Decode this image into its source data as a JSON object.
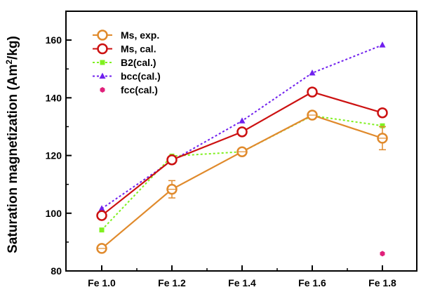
{
  "chart_data": {
    "type": "line",
    "categories": [
      "Fe 1.0",
      "Fe 1.2",
      "Fe 1.4",
      "Fe 1.6",
      "Fe 1.8"
    ],
    "ylabel": {
      "main": "Saturation magnetization (Am",
      "sup": "2",
      "tail": "/kg)"
    },
    "ylim": [
      80,
      170
    ],
    "yticks": [
      80,
      100,
      120,
      140,
      160
    ],
    "grid": false,
    "legend_position": "top-left",
    "series": [
      {
        "name": "Ms, exp.",
        "color": "#e08a2c",
        "marker": "open-circle",
        "line": "solid",
        "values": [
          87.8,
          108.3,
          121.3,
          134.0,
          126.0
        ],
        "error": [
          0.8,
          3.0,
          0.8,
          1.0,
          4.0
        ]
      },
      {
        "name": "Ms, cal.",
        "color": "#cc1111",
        "marker": "open-circle",
        "line": "solid",
        "values": [
          99.2,
          118.5,
          128.2,
          142.0,
          134.8
        ]
      },
      {
        "name": "B2(cal.)",
        "color": "#80f020",
        "marker": "square",
        "line": "dotted",
        "values": [
          94.2,
          119.8,
          121.3,
          133.8,
          130.3
        ]
      },
      {
        "name": "bcc(cal.)",
        "color": "#7020ee",
        "marker": "triangle",
        "line": "dotted",
        "values": [
          101.6,
          118.2,
          132.0,
          148.6,
          158.3
        ]
      },
      {
        "name": "fcc(cal.)",
        "color": "#e0207a",
        "marker": "hexagon",
        "line": "none",
        "values": [
          null,
          null,
          null,
          null,
          86.0
        ]
      }
    ]
  }
}
